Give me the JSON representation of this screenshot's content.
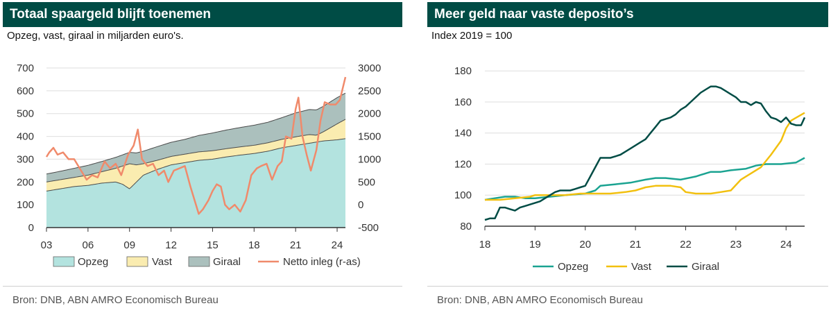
{
  "charts": {
    "left": {
      "title": "Totaal spaargeld blijft toenemen",
      "subtitle": "Opzeg, vast, giraal in miljarden euro's.",
      "source": "Bron: DNB, ABN AMRO Economisch Bureau",
      "legend": {
        "opzeg": "Opzeg",
        "vast": "Vast",
        "giraal": "Giraal",
        "netto": "Netto inleg (r-as)"
      }
    },
    "right": {
      "title": "Meer geld naar vaste deposito’s",
      "subtitle": "Index 2019 = 100",
      "source": "Bron: DNB, ABN AMRO Economisch Bureau",
      "legend": {
        "opzeg": "Opzeg",
        "vast": "Vast",
        "giraal": "Giraal"
      }
    }
  },
  "colors": {
    "header_bg": "#004c45",
    "opzeg_fill": "#b3e3df",
    "vast_fill": "#faecb0",
    "giraal_fill": "#abc0bd",
    "netto": "#f08a6b",
    "opzeg_line": "#1aa391",
    "vast_line": "#f2c00f",
    "giraal_line": "#004c45"
  },
  "chart_data": [
    {
      "type": "area",
      "title": "Totaal spaargeld blijft toenemen",
      "subtitle": "Opzeg, vast, giraal in miljarden euro's.",
      "x_ticks": [
        "03",
        "06",
        "09",
        "12",
        "15",
        "18",
        "21",
        "24"
      ],
      "xlim": [
        2003,
        2024.6
      ],
      "y_ticks": [
        0,
        100,
        200,
        300,
        400,
        500,
        600,
        700
      ],
      "ylim": [
        0,
        700
      ],
      "y2_ticks": [
        -500,
        0,
        500,
        1000,
        1500,
        2000,
        2500,
        3000
      ],
      "y2lim": [
        -500,
        3000
      ],
      "stacked": true,
      "series": [
        {
          "name": "Opzeg",
          "kind": "area",
          "x": [
            2003,
            2004,
            2005,
            2006,
            2007,
            2008,
            2008.5,
            2009,
            2009.5,
            2010,
            2011,
            2012,
            2013,
            2014,
            2015,
            2016,
            2017,
            2018,
            2019,
            2020,
            2021,
            2022,
            2023,
            2024,
            2024.6
          ],
          "values": [
            160,
            170,
            180,
            185,
            195,
            200,
            190,
            170,
            200,
            230,
            255,
            275,
            285,
            295,
            300,
            310,
            318,
            325,
            335,
            350,
            360,
            370,
            380,
            385,
            390
          ]
        },
        {
          "name": "Vast",
          "kind": "area",
          "x": [
            2003,
            2004,
            2005,
            2006,
            2007,
            2008,
            2008.5,
            2009,
            2009.5,
            2010,
            2011,
            2012,
            2013,
            2014,
            2015,
            2016,
            2017,
            2018,
            2019,
            2020,
            2021,
            2022,
            2022.5,
            2023,
            2024,
            2024.6
          ],
          "values": [
            40,
            40,
            40,
            45,
            50,
            60,
            80,
            110,
            75,
            50,
            40,
            37,
            37,
            37,
            37,
            36,
            36,
            36,
            37,
            37,
            38,
            38,
            30,
            40,
            70,
            85
          ]
        },
        {
          "name": "Giraal",
          "kind": "area",
          "x": [
            2003,
            2004,
            2005,
            2006,
            2007,
            2008,
            2009,
            2010,
            2011,
            2012,
            2013,
            2014,
            2015,
            2016,
            2017,
            2018,
            2019,
            2020,
            2021,
            2022,
            2023,
            2024,
            2024.6
          ],
          "values": [
            35,
            37,
            40,
            43,
            45,
            48,
            50,
            55,
            60,
            62,
            65,
            72,
            78,
            82,
            85,
            88,
            90,
            95,
            105,
            110,
            112,
            115,
            115
          ]
        },
        {
          "name": "Netto inleg (r-as)",
          "kind": "line",
          "axis": "right",
          "x": [
            2003,
            2003.2,
            2003.5,
            2003.8,
            2004.2,
            2004.6,
            2005,
            2005.5,
            2005.9,
            2006.3,
            2006.7,
            2007.2,
            2007.6,
            2008,
            2008.4,
            2008.9,
            2009.3,
            2009.6,
            2009.9,
            2010.3,
            2010.7,
            2011.1,
            2011.5,
            2011.8,
            2012.2,
            2012.6,
            2013,
            2013.4,
            2013.8,
            2014,
            2014.3,
            2014.7,
            2015,
            2015.3,
            2015.6,
            2015.9,
            2016.2,
            2016.6,
            2017,
            2017.4,
            2017.8,
            2018.2,
            2018.5,
            2018.9,
            2019.3,
            2019.7,
            2020,
            2020.3,
            2020.7,
            2021,
            2021.2,
            2021.5,
            2021.8,
            2022.1,
            2022.5,
            2022.8,
            2023.1,
            2023.5,
            2023.9,
            2024.2,
            2024.6
          ],
          "values": [
            1050,
            1150,
            1250,
            1100,
            1150,
            1000,
            1000,
            750,
            550,
            650,
            600,
            950,
            800,
            900,
            650,
            1100,
            1300,
            1650,
            1000,
            850,
            900,
            650,
            750,
            500,
            750,
            800,
            850,
            400,
            0,
            -200,
            -100,
            100,
            300,
            450,
            400,
            0,
            -100,
            0,
            -150,
            100,
            650,
            800,
            850,
            900,
            550,
            850,
            950,
            1500,
            1450,
            2100,
            2350,
            1500,
            1100,
            750,
            1200,
            1850,
            2250,
            2200,
            2200,
            2300,
            2800
          ]
        }
      ]
    },
    {
      "type": "line",
      "title": "Meer geld naar vaste deposito’s",
      "subtitle": "Index 2019 = 100",
      "x_ticks": [
        "18",
        "19",
        "20",
        "21",
        "22",
        "23",
        "24"
      ],
      "xlim": [
        2018,
        2024.37
      ],
      "y_ticks": [
        80,
        100,
        120,
        140,
        160,
        180
      ],
      "ylim": [
        80,
        185
      ],
      "series": [
        {
          "name": "Opzeg",
          "x": [
            2018,
            2018.2,
            2018.4,
            2018.6,
            2018.8,
            2019,
            2019.3,
            2019.6,
            2020,
            2020.2,
            2020.3,
            2020.6,
            2020.9,
            2021.2,
            2021.4,
            2021.6,
            2021.9,
            2022.2,
            2022.3,
            2022.5,
            2022.7,
            2022.9,
            2023.2,
            2023.4,
            2023.6,
            2023.9,
            2024.2,
            2024.37
          ],
          "values": [
            97,
            98,
            99,
            99,
            98,
            98,
            99,
            100,
            101,
            103,
            106,
            107,
            108,
            110,
            111,
            111,
            110,
            112,
            113,
            115,
            115,
            116,
            117,
            119,
            120,
            120,
            121,
            124
          ]
        },
        {
          "name": "Vast",
          "x": [
            2018,
            2018.3,
            2018.6,
            2018.9,
            2019,
            2019.3,
            2019.6,
            2019.9,
            2020.2,
            2020.5,
            2020.8,
            2021,
            2021.2,
            2021.4,
            2021.7,
            2021.9,
            2022,
            2022.2,
            2022.5,
            2022.7,
            2022.9,
            2023.1,
            2023.3,
            2023.5,
            2023.7,
            2023.9,
            2024,
            2024.1,
            2024.37
          ],
          "values": [
            97,
            97,
            98,
            99,
            100,
            100,
            100,
            101,
            101,
            101,
            102,
            103,
            105,
            106,
            106,
            105,
            102,
            101,
            101,
            102,
            103,
            110,
            114,
            118,
            126,
            135,
            143,
            148,
            153
          ]
        },
        {
          "name": "Giraal",
          "x": [
            2018,
            2018.1,
            2018.2,
            2018.3,
            2018.4,
            2018.5,
            2018.6,
            2018.7,
            2018.8,
            2018.9,
            2019,
            2019.1,
            2019.2,
            2019.3,
            2019.4,
            2019.5,
            2019.6,
            2019.7,
            2019.8,
            2019.9,
            2020,
            2020.1,
            2020.2,
            2020.3,
            2020.4,
            2020.5,
            2020.6,
            2020.7,
            2020.8,
            2020.9,
            2021,
            2021.1,
            2021.2,
            2021.3,
            2021.4,
            2021.5,
            2021.6,
            2021.7,
            2021.8,
            2021.9,
            2022,
            2022.1,
            2022.2,
            2022.3,
            2022.4,
            2022.5,
            2022.6,
            2022.7,
            2022.8,
            2022.9,
            2023,
            2023.1,
            2023.2,
            2023.3,
            2023.4,
            2023.5,
            2023.6,
            2023.7,
            2023.8,
            2023.9,
            2024,
            2024.1,
            2024.2,
            2024.3,
            2024.37
          ],
          "values": [
            84,
            85,
            85,
            92,
            92,
            91,
            90,
            92,
            93,
            94,
            95,
            96,
            98,
            100,
            102,
            103,
            103,
            103,
            104,
            105,
            106,
            112,
            118,
            124,
            124,
            124,
            125,
            126,
            128,
            130,
            132,
            134,
            136,
            140,
            144,
            148,
            149,
            150,
            152,
            155,
            157,
            160,
            163,
            166,
            168,
            170,
            170,
            169,
            167,
            165,
            163,
            160,
            160,
            158,
            160,
            159,
            154,
            150,
            149,
            147,
            150,
            146,
            145,
            145,
            150
          ]
        }
      ]
    }
  ]
}
